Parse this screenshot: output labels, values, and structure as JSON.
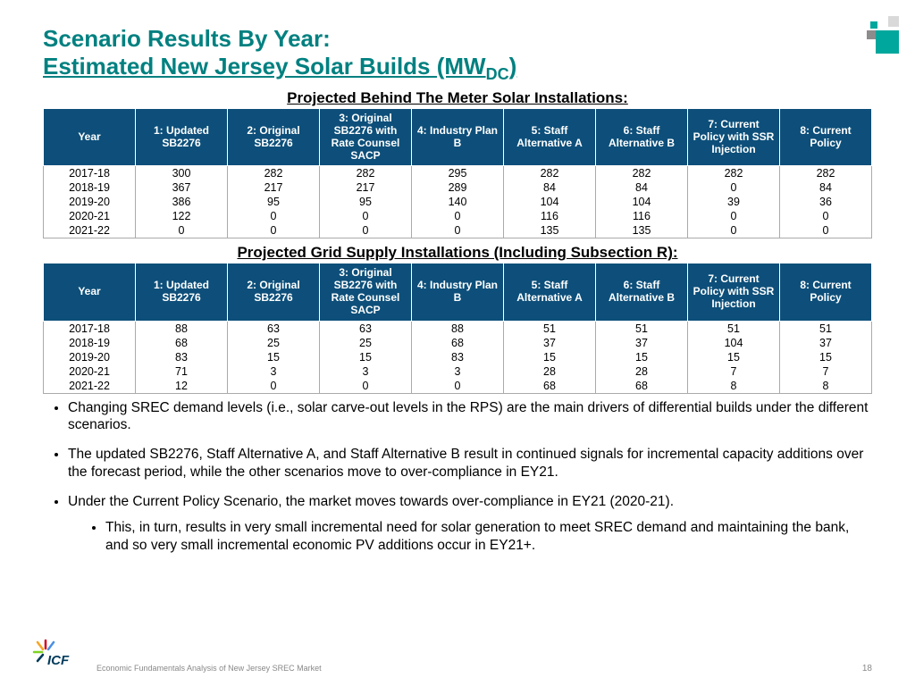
{
  "title": {
    "line1": "Scenario Results By Year:",
    "line2_pre": "Estimated New Jersey Solar Builds (MW",
    "line2_sub": "DC",
    "line2_post": ")"
  },
  "table1": {
    "caption": "Projected Behind The Meter Solar Installations:",
    "columns": [
      "Year",
      "1: Updated SB2276",
      "2: Original SB2276",
      "3: Original SB2276 with Rate Counsel SACP",
      "4: Industry Plan B",
      "5: Staff Alternative A",
      "6: Staff Alternative B",
      "7: Current Policy with SSR Injection",
      "8: Current Policy"
    ],
    "rows": [
      [
        "2017-18",
        "300",
        "282",
        "282",
        "295",
        "282",
        "282",
        "282",
        "282"
      ],
      [
        "2018-19",
        "367",
        "217",
        "217",
        "289",
        "84",
        "84",
        "0",
        "84"
      ],
      [
        "2019-20",
        "386",
        "95",
        "95",
        "140",
        "104",
        "104",
        "39",
        "36"
      ],
      [
        "2020-21",
        "122",
        "0",
        "0",
        "0",
        "116",
        "116",
        "0",
        "0"
      ],
      [
        "2021-22",
        "0",
        "0",
        "0",
        "0",
        "135",
        "135",
        "0",
        "0"
      ]
    ],
    "header_bg": "#0d4f7a",
    "header_color": "#ffffff",
    "font_size": 12.5,
    "type": "table"
  },
  "table2": {
    "caption": "Projected Grid Supply Installations (Including Subsection R):",
    "columns": [
      "Year",
      "1: Updated SB2276",
      "2: Original SB2276",
      "3: Original SB2276 with Rate Counsel SACP",
      "4: Industry Plan B",
      "5: Staff Alternative A",
      "6: Staff Alternative B",
      "7: Current Policy with SSR Injection",
      "8: Current Policy"
    ],
    "rows": [
      [
        "2017-18",
        "88",
        "63",
        "63",
        "88",
        "51",
        "51",
        "51",
        "51"
      ],
      [
        "2018-19",
        "68",
        "25",
        "25",
        "68",
        "37",
        "37",
        "104",
        "37"
      ],
      [
        "2019-20",
        "83",
        "15",
        "15",
        "83",
        "15",
        "15",
        "15",
        "15"
      ],
      [
        "2020-21",
        "71",
        "3",
        "3",
        "3",
        "28",
        "28",
        "7",
        "7"
      ],
      [
        "2021-22",
        "12",
        "0",
        "0",
        "0",
        "68",
        "68",
        "8",
        "8"
      ]
    ],
    "header_bg": "#0d4f7a",
    "header_color": "#ffffff",
    "font_size": 12.5,
    "type": "table"
  },
  "bullets": {
    "b1": "Changing SREC demand levels (i.e., solar carve-out levels in the RPS) are the main drivers of differential builds under the different scenarios.",
    "b2": "The updated SB2276, Staff Alternative A, and Staff Alternative B result in continued signals for incremental capacity additions over the forecast period, while the other scenarios move to over-compliance in EY21.",
    "b3": "Under the Current Policy Scenario, the market moves towards over-compliance in EY21 (2020-21).",
    "b3a": "This, in turn, results in very small incremental need for solar generation to meet SREC demand and maintaining the bank, and so very small incremental economic PV additions occur in EY21+."
  },
  "footer": {
    "text": "Economic Fundamentals Analysis of New Jersey SREC Market",
    "page": "18"
  },
  "colors": {
    "title": "#008080",
    "accent": "#00a79d"
  }
}
